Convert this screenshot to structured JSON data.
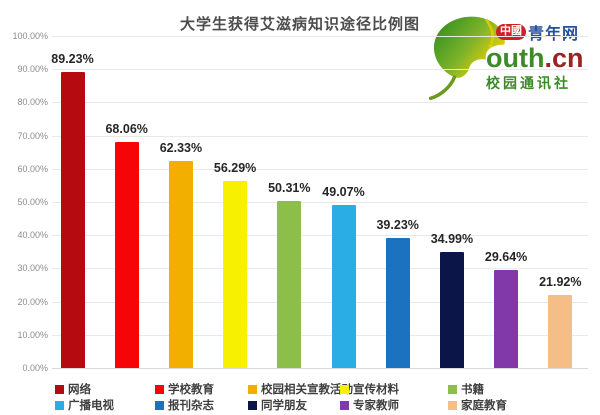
{
  "chart_data": {
    "type": "bar",
    "title": "大学生获得艾滋病知识途径比例图",
    "categories": [
      "网络",
      "学校教育",
      "校园相关宣教活动",
      "宣传材料",
      "书籍",
      "广播电视",
      "报刊杂志",
      "同学朋友",
      "专家教师",
      "家庭教育"
    ],
    "values": [
      89.23,
      68.06,
      62.33,
      56.29,
      50.31,
      49.07,
      39.23,
      34.99,
      29.64,
      21.92
    ],
    "value_labels": [
      "89.23%",
      "68.06%",
      "62.33%",
      "56.29%",
      "50.31%",
      "49.07%",
      "39.23%",
      "34.99%",
      "29.64%",
      "21.92%"
    ],
    "colors": [
      "#b40a10",
      "#f50408",
      "#f3af00",
      "#f7f000",
      "#8cbf4a",
      "#29ade4",
      "#1b72be",
      "#0c1547",
      "#8138a8",
      "#f6be87"
    ],
    "y_ticks": [
      "100.00%",
      "90.00%",
      "80.00%",
      "70.00%",
      "60.00%",
      "50.00%",
      "40.00%",
      "30.00%",
      "20.00%",
      "10.00%",
      "0.00%"
    ],
    "xlabel": "",
    "ylabel": "",
    "ylim": [
      0,
      100
    ],
    "grid": true,
    "legend_position": "bottom",
    "legend_rows": [
      [
        0,
        1,
        2,
        3,
        4
      ],
      [
        5,
        6,
        7,
        8,
        9
      ]
    ]
  },
  "logo": {
    "badge": "中國",
    "brand": "青年网",
    "domain_green": "outh",
    "domain_red": ".cn",
    "subtitle": "校园通讯社",
    "colors": {
      "badge_bg": "#cc2127",
      "brand_blue": "#24509e",
      "leaf_green": "#2f8f1f",
      "leaf_yellow": "#f0d400",
      "domain_green": "#3c8a28",
      "domain_red": "#9b2321"
    }
  }
}
